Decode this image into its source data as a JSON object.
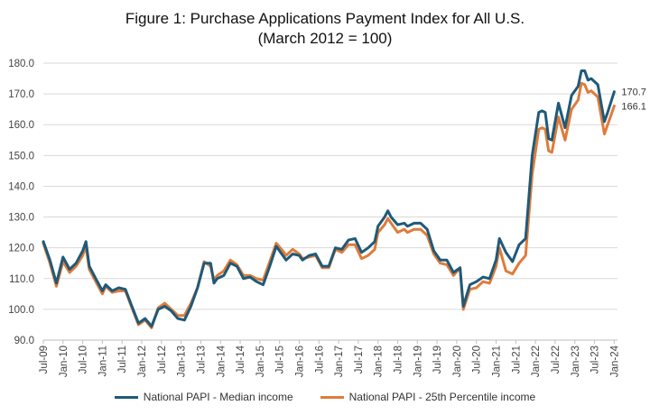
{
  "chart_data": {
    "type": "line",
    "title": "Figure 1: Purchase Applications Payment Index for All U.S.",
    "subtitle": "(March 2012 = 100)",
    "xlabel": "",
    "ylabel": "",
    "ylim": [
      90,
      180
    ],
    "y_ticks": [
      "180.0",
      "170.0",
      "160.0",
      "150.0",
      "140.0",
      "130.0",
      "120.0",
      "110.0",
      "100.0",
      "90.0"
    ],
    "grid": "horizontal",
    "legend_position": "bottom",
    "x_start": "2009-07",
    "x_end": "2024-02",
    "x_tick_labels": [
      "Jul-09",
      "Jan-10",
      "Jul-10",
      "Jan-11",
      "Jul-11",
      "Jan-12",
      "Jul-12",
      "Jan-13",
      "Jul-13",
      "Jan-14",
      "Jul-14",
      "Jan-15",
      "Jul-15",
      "Jan-16",
      "Jul-16",
      "Jan-17",
      "Jul-17",
      "Jan-18",
      "Jul-18",
      "Jan-19",
      "Jul-19",
      "Jan-20",
      "Jul-20",
      "Jan-21",
      "Jul-21",
      "Jan-22",
      "Jul-22",
      "Jan-23",
      "Jul-23",
      "Jan-24"
    ],
    "series": [
      {
        "name": "National PAPI - Median income",
        "color": "#1f5a78",
        "end_label": "170.7",
        "points": [
          [
            "2009-07",
            122
          ],
          [
            "2009-09",
            116
          ],
          [
            "2009-11",
            108.5
          ],
          [
            "2010-01",
            117
          ],
          [
            "2010-03",
            113
          ],
          [
            "2010-05",
            115
          ],
          [
            "2010-07",
            119
          ],
          [
            "2010-08",
            122
          ],
          [
            "2010-09",
            114
          ],
          [
            "2010-11",
            110
          ],
          [
            "2011-01",
            106
          ],
          [
            "2011-02",
            108
          ],
          [
            "2011-04",
            106
          ],
          [
            "2011-06",
            107
          ],
          [
            "2011-08",
            106.5
          ],
          [
            "2011-10",
            101
          ],
          [
            "2011-12",
            95.5
          ],
          [
            "2012-02",
            97
          ],
          [
            "2012-04",
            94.5
          ],
          [
            "2012-06",
            100
          ],
          [
            "2012-08",
            101
          ],
          [
            "2012-10",
            99.5
          ],
          [
            "2012-12",
            97
          ],
          [
            "2013-02",
            96.5
          ],
          [
            "2013-04",
            101
          ],
          [
            "2013-06",
            107
          ],
          [
            "2013-08",
            115
          ],
          [
            "2013-10",
            115
          ],
          [
            "2013-11",
            108.5
          ],
          [
            "2013-12",
            110
          ],
          [
            "2014-02",
            111
          ],
          [
            "2014-04",
            115
          ],
          [
            "2014-06",
            114
          ],
          [
            "2014-08",
            110
          ],
          [
            "2014-10",
            110.5
          ],
          [
            "2014-12",
            109
          ],
          [
            "2015-02",
            108
          ],
          [
            "2015-04",
            114
          ],
          [
            "2015-06",
            120.5
          ],
          [
            "2015-08",
            117.5
          ],
          [
            "2015-09",
            116
          ],
          [
            "2015-11",
            118
          ],
          [
            "2016-01",
            117.5
          ],
          [
            "2016-02",
            116
          ],
          [
            "2016-04",
            117.5
          ],
          [
            "2016-06",
            118
          ],
          [
            "2016-08",
            114
          ],
          [
            "2016-10",
            114
          ],
          [
            "2016-12",
            120
          ],
          [
            "2017-02",
            119.5
          ],
          [
            "2017-04",
            122.5
          ],
          [
            "2017-06",
            123
          ],
          [
            "2017-08",
            118.5
          ],
          [
            "2017-10",
            120
          ],
          [
            "2017-12",
            122
          ],
          [
            "2018-01",
            127
          ],
          [
            "2018-03",
            130
          ],
          [
            "2018-04",
            132
          ],
          [
            "2018-05",
            130
          ],
          [
            "2018-07",
            127.5
          ],
          [
            "2018-09",
            128
          ],
          [
            "2018-10",
            127
          ],
          [
            "2018-12",
            128
          ],
          [
            "2019-02",
            128
          ],
          [
            "2019-04",
            126
          ],
          [
            "2019-06",
            119
          ],
          [
            "2019-08",
            116
          ],
          [
            "2019-10",
            116
          ],
          [
            "2019-12",
            112
          ],
          [
            "2020-02",
            113.5
          ],
          [
            "2020-03",
            101
          ],
          [
            "2020-05",
            108
          ],
          [
            "2020-07",
            109
          ],
          [
            "2020-09",
            110.5
          ],
          [
            "2020-11",
            110
          ],
          [
            "2021-01",
            116
          ],
          [
            "2021-02",
            123
          ],
          [
            "2021-04",
            118.5
          ],
          [
            "2021-06",
            115.5
          ],
          [
            "2021-08",
            121
          ],
          [
            "2021-10",
            123
          ],
          [
            "2021-12",
            150
          ],
          [
            "2022-02",
            164
          ],
          [
            "2022-03",
            164.5
          ],
          [
            "2022-04",
            164
          ],
          [
            "2022-05",
            155.5
          ],
          [
            "2022-06",
            155
          ],
          [
            "2022-08",
            167
          ],
          [
            "2022-10",
            159
          ],
          [
            "2022-12",
            169.5
          ],
          [
            "2023-02",
            172.5
          ],
          [
            "2023-03",
            177.5
          ],
          [
            "2023-04",
            177.5
          ],
          [
            "2023-05",
            174.5
          ],
          [
            "2023-06",
            175
          ],
          [
            "2023-08",
            173
          ],
          [
            "2023-10",
            161
          ],
          [
            "2023-11",
            164
          ],
          [
            "2024-01",
            170.7
          ]
        ]
      },
      {
        "name": "National PAPI - 25th Percentile income",
        "color": "#e07b3a",
        "end_label": "166.1",
        "points": [
          [
            "2009-07",
            121.5
          ],
          [
            "2009-09",
            115
          ],
          [
            "2009-11",
            107.5
          ],
          [
            "2010-01",
            115.5
          ],
          [
            "2010-03",
            112
          ],
          [
            "2010-05",
            114
          ],
          [
            "2010-07",
            117.5
          ],
          [
            "2010-08",
            120.5
          ],
          [
            "2010-09",
            113
          ],
          [
            "2010-11",
            109
          ],
          [
            "2011-01",
            105
          ],
          [
            "2011-02",
            107.5
          ],
          [
            "2011-04",
            105.5
          ],
          [
            "2011-06",
            106
          ],
          [
            "2011-08",
            106
          ],
          [
            "2011-10",
            100.5
          ],
          [
            "2011-12",
            95
          ],
          [
            "2012-02",
            96.5
          ],
          [
            "2012-04",
            94
          ],
          [
            "2012-06",
            100.5
          ],
          [
            "2012-08",
            102
          ],
          [
            "2012-10",
            100
          ],
          [
            "2012-12",
            98
          ],
          [
            "2013-02",
            98
          ],
          [
            "2013-04",
            102
          ],
          [
            "2013-06",
            107
          ],
          [
            "2013-08",
            115.5
          ],
          [
            "2013-10",
            114
          ],
          [
            "2013-11",
            109.5
          ],
          [
            "2013-12",
            111
          ],
          [
            "2014-02",
            112.5
          ],
          [
            "2014-04",
            116
          ],
          [
            "2014-06",
            114.5
          ],
          [
            "2014-08",
            111
          ],
          [
            "2014-10",
            111
          ],
          [
            "2014-12",
            110
          ],
          [
            "2015-02",
            109.5
          ],
          [
            "2015-04",
            115.5
          ],
          [
            "2015-06",
            121.5
          ],
          [
            "2015-08",
            119
          ],
          [
            "2015-09",
            117.5
          ],
          [
            "2015-11",
            119.5
          ],
          [
            "2016-01",
            118
          ],
          [
            "2016-02",
            116.5
          ],
          [
            "2016-04",
            117
          ],
          [
            "2016-06",
            117.5
          ],
          [
            "2016-08",
            113.5
          ],
          [
            "2016-10",
            113.5
          ],
          [
            "2016-12",
            119.5
          ],
          [
            "2017-02",
            118.5
          ],
          [
            "2017-04",
            121
          ],
          [
            "2017-06",
            121
          ],
          [
            "2017-08",
            116.5
          ],
          [
            "2017-10",
            117.5
          ],
          [
            "2017-12",
            119.5
          ],
          [
            "2018-01",
            125
          ],
          [
            "2018-03",
            127.5
          ],
          [
            "2018-04",
            129.5
          ],
          [
            "2018-05",
            128
          ],
          [
            "2018-07",
            125
          ],
          [
            "2018-09",
            126
          ],
          [
            "2018-10",
            125
          ],
          [
            "2018-12",
            126
          ],
          [
            "2019-02",
            126
          ],
          [
            "2019-04",
            124
          ],
          [
            "2019-06",
            118
          ],
          [
            "2019-08",
            115
          ],
          [
            "2019-10",
            114.5
          ],
          [
            "2019-12",
            111
          ],
          [
            "2020-02",
            113.5
          ],
          [
            "2020-03",
            100
          ],
          [
            "2020-05",
            106.5
          ],
          [
            "2020-07",
            107
          ],
          [
            "2020-09",
            109
          ],
          [
            "2020-11",
            108.5
          ],
          [
            "2021-01",
            114
          ],
          [
            "2021-02",
            120
          ],
          [
            "2021-04",
            112.5
          ],
          [
            "2021-06",
            111.5
          ],
          [
            "2021-08",
            115
          ],
          [
            "2021-10",
            117.5
          ],
          [
            "2021-12",
            144
          ],
          [
            "2022-02",
            158.5
          ],
          [
            "2022-03",
            159
          ],
          [
            "2022-04",
            158.5
          ],
          [
            "2022-05",
            151.5
          ],
          [
            "2022-06",
            151
          ],
          [
            "2022-08",
            162.5
          ],
          [
            "2022-10",
            155
          ],
          [
            "2022-12",
            165
          ],
          [
            "2023-02",
            168
          ],
          [
            "2023-03",
            173.5
          ],
          [
            "2023-04",
            173
          ],
          [
            "2023-05",
            170.5
          ],
          [
            "2023-06",
            171
          ],
          [
            "2023-08",
            169
          ],
          [
            "2023-10",
            157
          ],
          [
            "2023-11",
            160
          ],
          [
            "2024-01",
            166.1
          ]
        ]
      }
    ]
  }
}
